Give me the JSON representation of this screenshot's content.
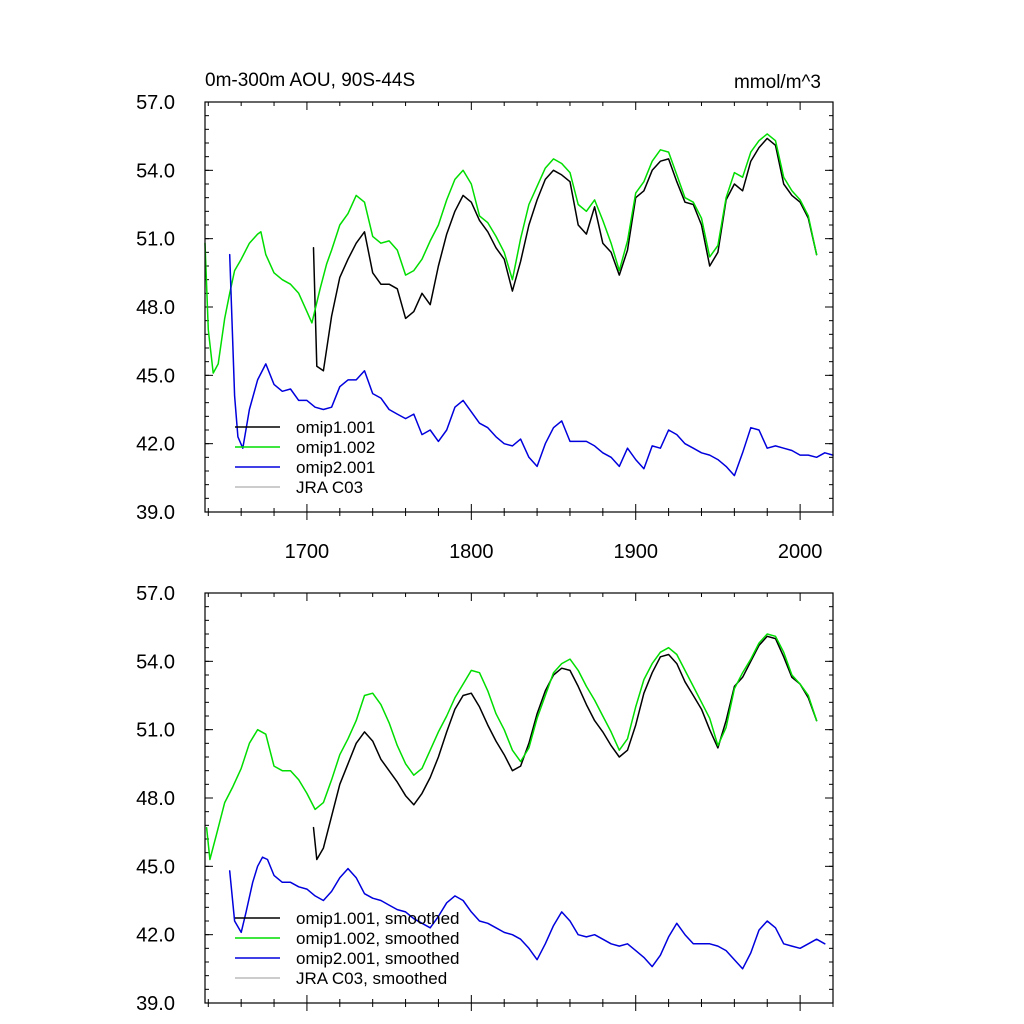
{
  "chart_data": [
    {
      "type": "line",
      "title": "0m-300m AOU, 90S-44S",
      "units": "mmol/m^3",
      "xlim": [
        1638,
        2020
      ],
      "ylim": [
        39.0,
        57.0
      ],
      "x_ticks": [
        1700,
        1800,
        1900,
        2000
      ],
      "x_tick_labels": [
        "1700",
        "1800",
        "1900",
        "2000"
      ],
      "y_ticks": [
        39,
        42,
        45,
        48,
        51,
        54,
        57
      ],
      "y_tick_labels": [
        "39.0",
        "42.0",
        "45.0",
        "48.0",
        "51.0",
        "54.0",
        "57.0"
      ],
      "legend_position": "bottom-left",
      "series": [
        {
          "name": "omip1.001",
          "color": "#000000",
          "x": [
            1704,
            1706,
            1710,
            1715,
            1720,
            1725,
            1730,
            1735,
            1740,
            1745,
            1750,
            1755,
            1760,
            1765,
            1770,
            1775,
            1780,
            1785,
            1790,
            1795,
            1800,
            1805,
            1810,
            1815,
            1820,
            1825,
            1830,
            1835,
            1840,
            1845,
            1850,
            1855,
            1860,
            1865,
            1870,
            1875,
            1880,
            1885,
            1890,
            1895,
            1900,
            1905,
            1910,
            1915,
            1920,
            1925,
            1930,
            1935,
            1940,
            1945,
            1950,
            1955,
            1960,
            1965,
            1970,
            1975,
            1980,
            1985,
            1990,
            1995,
            2000,
            2005,
            2010
          ],
          "y": [
            50.6,
            45.4,
            45.2,
            47.6,
            49.3,
            50.1,
            50.8,
            51.3,
            49.5,
            49.0,
            49.0,
            48.8,
            47.5,
            47.8,
            48.6,
            48.1,
            49.8,
            51.2,
            52.2,
            52.9,
            52.6,
            51.8,
            51.3,
            50.6,
            50.1,
            48.7,
            50.0,
            51.6,
            52.7,
            53.6,
            54.0,
            53.8,
            53.5,
            51.6,
            51.2,
            52.4,
            50.8,
            50.4,
            49.4,
            50.5,
            52.8,
            53.1,
            54.0,
            54.4,
            54.5,
            53.5,
            52.6,
            52.5,
            51.6,
            49.8,
            50.4,
            52.7,
            53.4,
            53.1,
            54.4,
            55.0,
            55.4,
            55.1,
            53.4,
            52.9,
            52.6,
            51.9,
            50.3
          ]
        },
        {
          "name": "omip1.002",
          "color": "#00dd00",
          "x": [
            1638,
            1640,
            1643,
            1646,
            1650,
            1653,
            1656,
            1660,
            1665,
            1670,
            1672,
            1675,
            1680,
            1685,
            1690,
            1695,
            1700,
            1703,
            1708,
            1712,
            1715,
            1720,
            1725,
            1730,
            1735,
            1740,
            1745,
            1750,
            1755,
            1760,
            1765,
            1770,
            1775,
            1780,
            1785,
            1790,
            1795,
            1800,
            1805,
            1810,
            1815,
            1820,
            1825,
            1830,
            1835,
            1840,
            1845,
            1850,
            1855,
            1860,
            1865,
            1870,
            1875,
            1880,
            1885,
            1890,
            1895,
            1900,
            1905,
            1910,
            1915,
            1920,
            1925,
            1930,
            1935,
            1940,
            1945,
            1950,
            1955,
            1960,
            1965,
            1970,
            1975,
            1980,
            1985,
            1990,
            1995,
            2000,
            2005,
            2010
          ],
          "y": [
            50.8,
            47.0,
            45.1,
            45.5,
            47.5,
            48.6,
            49.6,
            50.1,
            50.8,
            51.2,
            51.3,
            50.3,
            49.5,
            49.2,
            49.0,
            48.6,
            47.8,
            47.3,
            48.8,
            49.9,
            50.5,
            51.6,
            52.1,
            52.9,
            52.6,
            51.1,
            50.8,
            50.9,
            50.5,
            49.4,
            49.6,
            50.1,
            50.9,
            51.6,
            52.7,
            53.6,
            54.0,
            53.4,
            52.0,
            51.7,
            51.1,
            50.4,
            49.2,
            51.0,
            52.5,
            53.3,
            54.1,
            54.5,
            54.3,
            53.9,
            52.5,
            52.2,
            52.7,
            51.8,
            50.8,
            49.6,
            50.9,
            53.0,
            53.5,
            54.4,
            54.9,
            54.8,
            53.8,
            52.8,
            52.6,
            51.9,
            50.2,
            50.7,
            52.8,
            53.9,
            53.7,
            54.8,
            55.3,
            55.6,
            55.3,
            53.7,
            53.1,
            52.7,
            52.0,
            50.3
          ]
        },
        {
          "name": "omip2.001",
          "color": "#0000dd",
          "x": [
            1653,
            1656,
            1658,
            1661,
            1665,
            1670,
            1675,
            1680,
            1685,
            1690,
            1695,
            1700,
            1705,
            1710,
            1715,
            1720,
            1725,
            1730,
            1735,
            1740,
            1745,
            1750,
            1755,
            1760,
            1765,
            1770,
            1775,
            1780,
            1785,
            1790,
            1795,
            1800,
            1805,
            1810,
            1815,
            1820,
            1825,
            1830,
            1835,
            1840,
            1845,
            1850,
            1855,
            1860,
            1865,
            1870,
            1875,
            1880,
            1885,
            1890,
            1895,
            1900,
            1905,
            1910,
            1915,
            1920,
            1925,
            1930,
            1935,
            1940,
            1945,
            1950,
            1955,
            1960,
            1965,
            1970,
            1975,
            1980,
            1985,
            1990,
            1995,
            2000,
            2005,
            2010,
            2015,
            2020
          ],
          "y": [
            50.3,
            44.1,
            42.3,
            41.8,
            43.5,
            44.8,
            45.5,
            44.6,
            44.3,
            44.4,
            43.9,
            43.9,
            43.6,
            43.5,
            43.6,
            44.5,
            44.8,
            44.8,
            45.2,
            44.2,
            44.0,
            43.5,
            43.3,
            43.1,
            43.3,
            42.4,
            42.6,
            42.1,
            42.6,
            43.6,
            43.9,
            43.4,
            42.9,
            42.7,
            42.3,
            42.0,
            41.9,
            42.2,
            41.4,
            41.0,
            42.0,
            42.7,
            43.0,
            42.1,
            42.1,
            42.1,
            41.9,
            41.6,
            41.4,
            41.0,
            41.8,
            41.3,
            40.9,
            41.9,
            41.8,
            42.6,
            42.4,
            42.0,
            41.8,
            41.6,
            41.5,
            41.3,
            41.0,
            40.6,
            41.6,
            42.7,
            42.6,
            41.8,
            41.9,
            41.8,
            41.7,
            41.5,
            41.5,
            41.4,
            41.6,
            41.5
          ]
        },
        {
          "name": "JRA C03",
          "color": "#bbbbbb",
          "x": [],
          "y": []
        }
      ]
    },
    {
      "type": "line",
      "xlim": [
        1638,
        2020
      ],
      "ylim": [
        39.0,
        57.0
      ],
      "x_ticks": [
        1700,
        1800,
        1900,
        2000
      ],
      "y_ticks": [
        39,
        42,
        45,
        48,
        51,
        54,
        57
      ],
      "y_tick_labels": [
        "39.0",
        "42.0",
        "45.0",
        "48.0",
        "51.0",
        "54.0",
        "57.0"
      ],
      "legend_position": "bottom-left",
      "series": [
        {
          "name": "omip1.001, smoothed",
          "color": "#000000",
          "x": [
            1704,
            1706,
            1710,
            1715,
            1720,
            1725,
            1730,
            1735,
            1740,
            1745,
            1750,
            1755,
            1760,
            1765,
            1770,
            1775,
            1780,
            1785,
            1790,
            1795,
            1800,
            1805,
            1810,
            1815,
            1820,
            1825,
            1830,
            1835,
            1840,
            1845,
            1850,
            1855,
            1860,
            1865,
            1870,
            1875,
            1880,
            1885,
            1890,
            1895,
            1900,
            1905,
            1910,
            1915,
            1920,
            1925,
            1930,
            1935,
            1940,
            1945,
            1950,
            1955,
            1960,
            1965,
            1970,
            1975,
            1980,
            1985,
            1990,
            1995,
            2000,
            2005,
            2010
          ],
          "y": [
            46.7,
            45.3,
            45.8,
            47.2,
            48.6,
            49.5,
            50.4,
            50.9,
            50.5,
            49.7,
            49.2,
            48.7,
            48.1,
            47.7,
            48.2,
            48.9,
            49.8,
            50.9,
            51.9,
            52.5,
            52.6,
            52.0,
            51.2,
            50.5,
            49.9,
            49.2,
            49.4,
            50.4,
            51.7,
            52.7,
            53.4,
            53.7,
            53.6,
            52.9,
            52.1,
            51.4,
            50.9,
            50.3,
            49.8,
            50.1,
            51.2,
            52.6,
            53.5,
            54.2,
            54.3,
            53.9,
            53.1,
            52.5,
            51.9,
            51.0,
            50.2,
            51.4,
            52.9,
            53.3,
            54.0,
            54.7,
            55.1,
            55.0,
            54.2,
            53.3,
            53.0,
            52.4,
            51.4
          ]
        },
        {
          "name": "omip1.002, smoothed",
          "color": "#00dd00",
          "x": [
            1639,
            1641,
            1645,
            1650,
            1655,
            1660,
            1665,
            1670,
            1675,
            1680,
            1685,
            1690,
            1695,
            1700,
            1705,
            1710,
            1715,
            1720,
            1725,
            1730,
            1735,
            1740,
            1745,
            1750,
            1755,
            1760,
            1765,
            1770,
            1775,
            1780,
            1785,
            1790,
            1795,
            1800,
            1805,
            1810,
            1815,
            1820,
            1825,
            1830,
            1835,
            1840,
            1845,
            1850,
            1855,
            1860,
            1865,
            1870,
            1875,
            1880,
            1885,
            1890,
            1895,
            1900,
            1905,
            1910,
            1915,
            1920,
            1925,
            1930,
            1935,
            1940,
            1945,
            1950,
            1955,
            1960,
            1965,
            1970,
            1975,
            1980,
            1985,
            1990,
            1995,
            2000,
            2005,
            2010
          ],
          "y": [
            46.7,
            45.3,
            46.4,
            47.8,
            48.5,
            49.3,
            50.4,
            51.0,
            50.8,
            49.4,
            49.2,
            49.2,
            48.8,
            48.2,
            47.5,
            47.8,
            48.8,
            49.9,
            50.6,
            51.4,
            52.5,
            52.6,
            52.1,
            51.3,
            50.3,
            49.5,
            49.0,
            49.3,
            50.1,
            50.9,
            51.6,
            52.4,
            53.0,
            53.6,
            53.5,
            52.7,
            51.7,
            51.0,
            50.1,
            49.6,
            50.2,
            51.5,
            52.5,
            53.5,
            53.9,
            54.1,
            53.6,
            52.9,
            52.3,
            51.6,
            50.9,
            50.1,
            50.6,
            52.0,
            53.2,
            53.9,
            54.4,
            54.6,
            54.3,
            53.6,
            52.9,
            52.2,
            51.5,
            50.3,
            51.1,
            52.8,
            53.5,
            54.1,
            54.8,
            55.2,
            55.1,
            54.4,
            53.4,
            53.0,
            52.5,
            51.4
          ]
        },
        {
          "name": "omip2.001, smoothed",
          "color": "#0000dd",
          "x": [
            1653,
            1656,
            1660,
            1663,
            1667,
            1670,
            1673,
            1676,
            1680,
            1685,
            1690,
            1695,
            1700,
            1705,
            1710,
            1715,
            1720,
            1725,
            1730,
            1735,
            1740,
            1745,
            1750,
            1755,
            1760,
            1765,
            1770,
            1775,
            1780,
            1785,
            1790,
            1795,
            1800,
            1805,
            1810,
            1815,
            1820,
            1825,
            1830,
            1835,
            1840,
            1845,
            1850,
            1855,
            1860,
            1865,
            1870,
            1875,
            1880,
            1885,
            1890,
            1895,
            1900,
            1905,
            1910,
            1915,
            1920,
            1925,
            1930,
            1935,
            1940,
            1945,
            1950,
            1955,
            1960,
            1965,
            1970,
            1975,
            1980,
            1985,
            1990,
            1995,
            2000,
            2005,
            2010,
            2015
          ],
          "y": [
            44.8,
            42.6,
            42.1,
            43.0,
            44.3,
            45.0,
            45.4,
            45.3,
            44.6,
            44.3,
            44.3,
            44.1,
            44.0,
            43.7,
            43.5,
            43.9,
            44.5,
            44.9,
            44.5,
            43.8,
            43.6,
            43.5,
            43.3,
            43.1,
            43.0,
            42.7,
            42.5,
            42.3,
            42.8,
            43.4,
            43.7,
            43.5,
            43.0,
            42.6,
            42.5,
            42.3,
            42.1,
            42.0,
            41.8,
            41.4,
            40.9,
            41.6,
            42.4,
            43.0,
            42.6,
            42.0,
            41.9,
            42.0,
            41.8,
            41.6,
            41.5,
            41.6,
            41.3,
            41.0,
            40.6,
            41.1,
            41.9,
            42.5,
            42.0,
            41.6,
            41.6,
            41.6,
            41.5,
            41.3,
            40.9,
            40.5,
            41.2,
            42.2,
            42.6,
            42.3,
            41.6,
            41.5,
            41.4,
            41.6,
            41.8,
            41.6
          ]
        },
        {
          "name": "JRA C03, smoothed",
          "color": "#bbbbbb",
          "x": [],
          "y": []
        }
      ]
    }
  ]
}
